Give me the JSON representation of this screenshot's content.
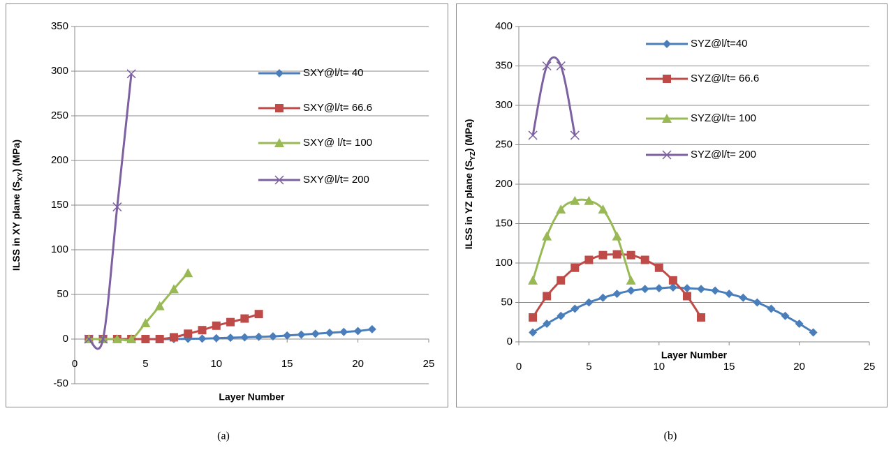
{
  "chart_data": [
    {
      "type": "line",
      "caption": "(a)",
      "x_label": "Layer Number",
      "y_label": [
        "ILSS in XY plane (S",
        "XY",
        ") (MPa)"
      ],
      "xlim": [
        0,
        25
      ],
      "xticks": [
        0,
        5,
        10,
        15,
        20,
        25
      ],
      "ylim": [
        -50,
        350
      ],
      "yticks": [
        -50,
        0,
        50,
        100,
        150,
        200,
        250,
        300,
        350
      ],
      "grid": true,
      "smooth": true,
      "series": [
        {
          "name": "SXY@l/t= 40",
          "color": "#4a7ebb",
          "marker": "diamond",
          "x": [
            1,
            2,
            3,
            4,
            5,
            6,
            7,
            8,
            9,
            10,
            11,
            12,
            13,
            14,
            15,
            16,
            17,
            18,
            19,
            20,
            21
          ],
          "values": [
            0,
            0,
            0,
            0,
            0,
            0,
            0,
            0.3,
            0.5,
            1,
            1.5,
            2,
            2.5,
            3,
            4,
            5,
            6,
            7,
            8,
            9,
            11
          ]
        },
        {
          "name": "SXY@l/t= 66.6",
          "color": "#be4b48",
          "marker": "square",
          "x": [
            1,
            2,
            3,
            4,
            5,
            6,
            7,
            8,
            9,
            10,
            11,
            12,
            13
          ],
          "values": [
            0,
            0,
            0,
            0,
            0,
            0,
            2,
            6,
            10,
            15,
            19,
            23,
            28
          ]
        },
        {
          "name": "SXY@ l/t= 100",
          "color": "#98b954",
          "marker": "triangle",
          "x": [
            1,
            2,
            3,
            4,
            5,
            6,
            7,
            8
          ],
          "values": [
            0,
            0,
            0,
            0,
            18,
            37,
            56,
            74
          ]
        },
        {
          "name": "SXY@l/t= 200",
          "color": "#7d60a0",
          "marker": "x",
          "x": [
            1,
            2,
            3,
            4
          ],
          "values": [
            0,
            0,
            148,
            297
          ]
        }
      ]
    },
    {
      "type": "line",
      "caption": "(b)",
      "x_label": "Layer Number",
      "y_label": [
        "ILSS in YZ plane (S",
        "YZ",
        ") (MPa)"
      ],
      "xlim": [
        0,
        25
      ],
      "xticks": [
        0,
        5,
        10,
        15,
        20,
        25
      ],
      "ylim": [
        0,
        400
      ],
      "yticks": [
        0,
        50,
        100,
        150,
        200,
        250,
        300,
        350,
        400
      ],
      "grid": true,
      "smooth": true,
      "series": [
        {
          "name": "SYZ@l/t=40",
          "color": "#4a7ebb",
          "marker": "diamond",
          "x": [
            1,
            2,
            3,
            4,
            5,
            6,
            7,
            8,
            9,
            10,
            11,
            12,
            13,
            14,
            15,
            16,
            17,
            18,
            19,
            20,
            21
          ],
          "values": [
            12,
            23,
            33,
            42,
            50,
            56,
            61,
            65,
            67,
            68,
            69,
            68,
            67,
            65,
            61,
            56,
            50,
            42,
            33,
            23,
            12
          ]
        },
        {
          "name": "SYZ@l/t= 66.6",
          "color": "#be4b48",
          "marker": "square",
          "x": [
            1,
            2,
            3,
            4,
            5,
            6,
            7,
            8,
            9,
            10,
            11,
            12,
            13
          ],
          "values": [
            31,
            58,
            78,
            94,
            104,
            110,
            111,
            110,
            104,
            94,
            78,
            58,
            31
          ]
        },
        {
          "name": "SYZ@l/t= 100",
          "color": "#98b954",
          "marker": "triangle",
          "x": [
            1,
            2,
            3,
            4,
            5,
            6,
            7,
            8
          ],
          "values": [
            78,
            134,
            168,
            179,
            179,
            168,
            134,
            78
          ]
        },
        {
          "name": "SYZ@l/t= 200",
          "color": "#7d60a0",
          "marker": "x",
          "x": [
            1,
            2,
            3,
            4
          ],
          "values": [
            262,
            350,
            350,
            262
          ]
        }
      ]
    }
  ]
}
